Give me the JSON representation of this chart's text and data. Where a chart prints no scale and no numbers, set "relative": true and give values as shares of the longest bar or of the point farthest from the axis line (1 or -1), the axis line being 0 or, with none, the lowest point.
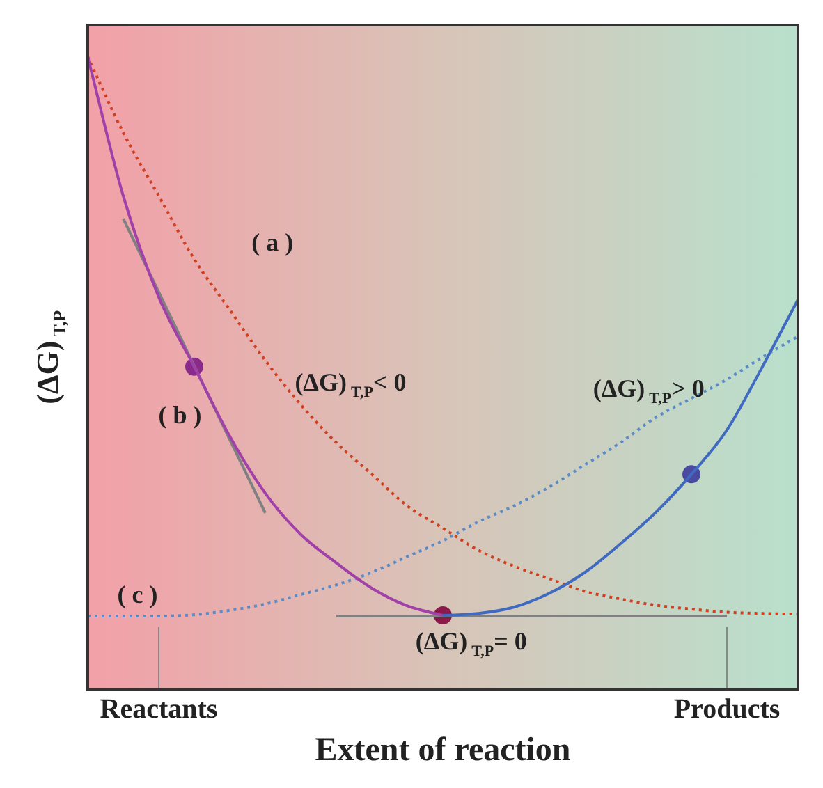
{
  "chart_data": {
    "type": "line",
    "relative": true,
    "xlabel": "Extent of reaction",
    "ylabel": "(ΔG)$_{T,P}$",
    "legend": false,
    "categories": [
      null,
      null,
      "Reactants",
      null,
      null,
      null,
      null,
      null,
      null,
      null,
      null,
      null,
      null,
      null,
      null,
      null,
      null,
      null,
      "Products",
      null,
      null
    ],
    "series": [
      {
        "type": "line",
        "color": "#a040a8",
        "line_style": "solid",
        "marker": "none",
        "values": [
          1.0,
          0.78,
          0.62,
          0.51,
          0.4,
          0.31,
          0.245,
          0.2,
          0.16,
          0.132,
          0.117,
          null,
          null,
          null,
          null,
          null,
          null,
          null,
          null,
          null,
          null
        ]
      },
      {
        "type": "line",
        "color": "#3f6ac0",
        "line_style": "solid",
        "marker": "none",
        "values": [
          null,
          null,
          null,
          null,
          null,
          null,
          null,
          null,
          null,
          null,
          0.117,
          0.12,
          0.13,
          0.152,
          0.185,
          0.23,
          0.28,
          0.34,
          0.41,
          0.51,
          0.616
        ]
      },
      {
        "type": "line",
        "color": "#d04020",
        "line_style": "dotted",
        "marker": "none",
        "values": [
          1.0,
          0.88,
          0.78,
          0.68,
          0.6,
          0.52,
          0.45,
          0.39,
          0.34,
          0.29,
          0.255,
          0.22,
          0.195,
          0.175,
          0.155,
          0.143,
          0.133,
          0.127,
          0.122,
          0.12,
          0.119
        ]
      },
      {
        "type": "line",
        "color": "#5a8ac8",
        "line_style": "dotted",
        "marker": "none",
        "values": [
          0.116,
          0.116,
          0.116,
          0.118,
          0.125,
          0.135,
          0.15,
          0.165,
          0.185,
          0.21,
          0.235,
          0.265,
          0.29,
          0.32,
          0.355,
          0.39,
          0.43,
          0.46,
          0.49,
          0.525,
          0.558
        ]
      },
      {
        "type": "line",
        "color": "#808080",
        "line_style": "solid",
        "marker": "none",
        "values": [
          null,
          0.744,
          0.628,
          0.511,
          0.395,
          0.279,
          null,
          null,
          null,
          null,
          null,
          null,
          null,
          null,
          null,
          null,
          null,
          null,
          null,
          null,
          null
        ]
      },
      {
        "type": "line",
        "color": "#808080",
        "line_style": "solid",
        "marker": "none",
        "values": [
          null,
          null,
          null,
          null,
          null,
          null,
          null,
          0.116,
          0.116,
          0.116,
          0.116,
          0.116,
          0.116,
          0.116,
          0.116,
          0.116,
          0.116,
          0.116,
          0.116,
          null,
          null
        ]
      },
      {
        "type": "scatter",
        "color": "#8a2a8a",
        "marker": "circle",
        "values": [
          null,
          null,
          null,
          0.51,
          null,
          null,
          null,
          null,
          null,
          null,
          null,
          null,
          null,
          null,
          null,
          null,
          null,
          null,
          null,
          null,
          null
        ]
      },
      {
        "type": "scatter",
        "color": "#8b1a4a",
        "marker": "circle",
        "values": [
          null,
          null,
          null,
          null,
          null,
          null,
          null,
          null,
          null,
          null,
          0.117,
          null,
          null,
          null,
          null,
          null,
          null,
          null,
          null,
          null,
          null
        ]
      },
      {
        "type": "scatter",
        "color": "#4a4aa0",
        "marker": "circle",
        "values": [
          null,
          null,
          null,
          null,
          null,
          null,
          null,
          null,
          null,
          null,
          null,
          null,
          null,
          null,
          null,
          null,
          null,
          0.34,
          null,
          null,
          null
        ]
      }
    ],
    "ref_lines": [
      {
        "axis": "x",
        "value": "Reactants",
        "color": "#888888"
      },
      {
        "axis": "x",
        "value": "Products",
        "color": "#888888"
      }
    ],
    "annotations": [
      "( a )",
      "( b )",
      "( c )",
      "(ΔG)$_{T,P}$< 0",
      "(ΔG)$_{T,P}$> 0",
      "(ΔG)$_{T,P}$= 0"
    ]
  }
}
